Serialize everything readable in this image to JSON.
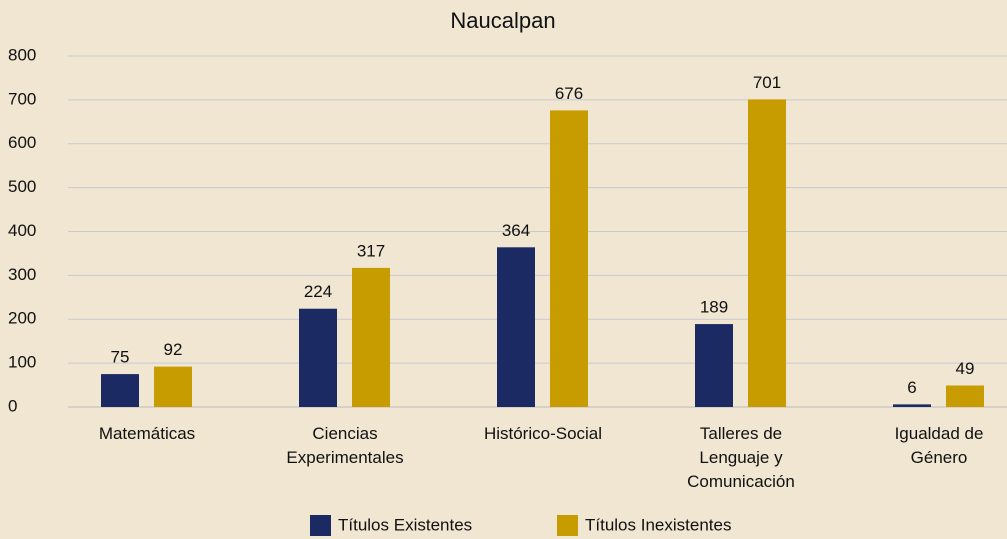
{
  "chart_data": {
    "type": "bar",
    "title": "Naucalpan",
    "categories": [
      "Matemáticas",
      "Ciencias Experimentales",
      "Histórico-Social",
      "Talleres de Lenguaje y Comunicación",
      "Igualdad de Género"
    ],
    "series": [
      {
        "name": "Títulos Existentes",
        "color": "#1b2a63",
        "values": [
          75,
          224,
          364,
          189,
          6
        ]
      },
      {
        "name": "Títulos Inexistentes",
        "color": "#c79c00",
        "values": [
          92,
          317,
          676,
          701,
          49
        ]
      }
    ],
    "ylim": [
      0,
      800
    ],
    "yticks": [
      0,
      100,
      200,
      300,
      400,
      500,
      600,
      700,
      800
    ],
    "grid": true,
    "legend": "bottom"
  }
}
